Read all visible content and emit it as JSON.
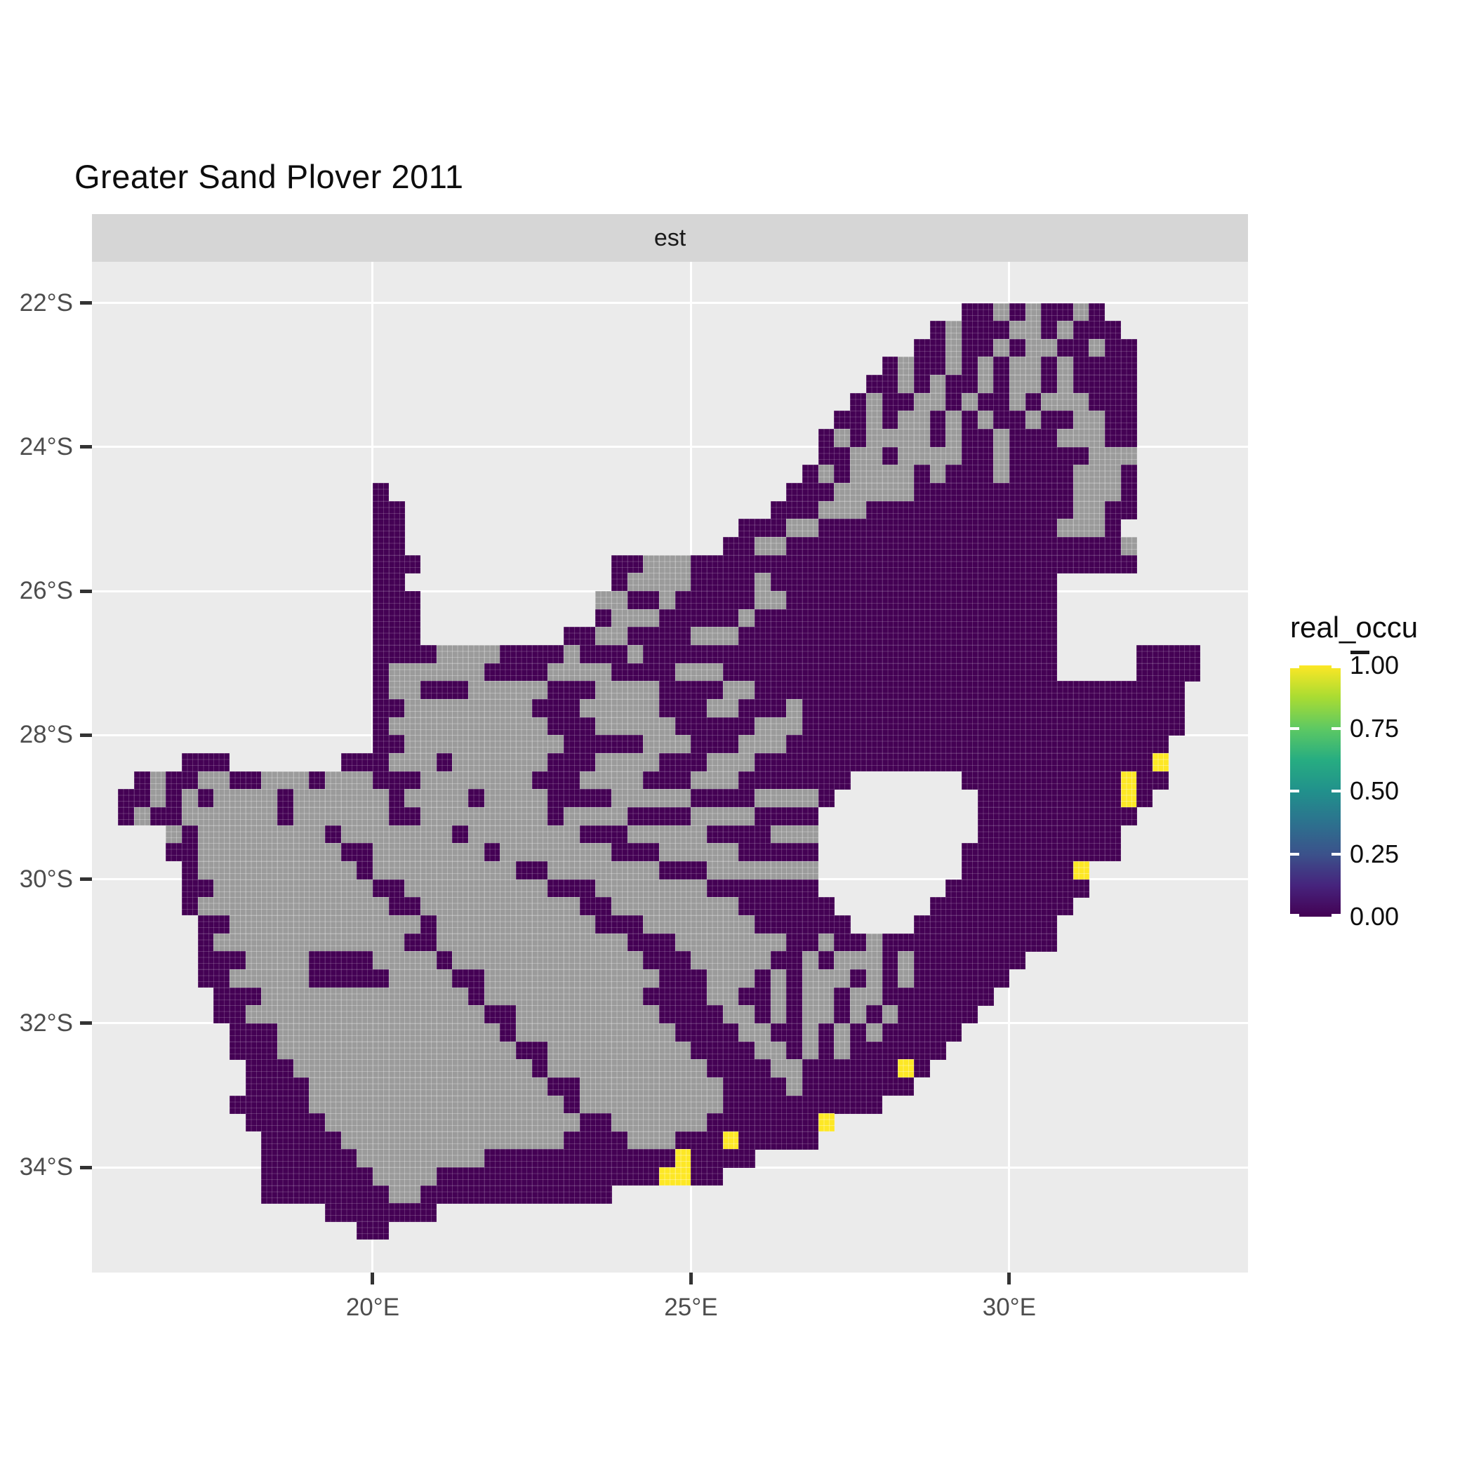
{
  "title": "Greater Sand Plover 2011",
  "facet": {
    "label": "est"
  },
  "axes": {
    "x": {
      "ticks": [
        {
          "label": "20°E",
          "value": 20
        },
        {
          "label": "25°E",
          "value": 25
        },
        {
          "label": "30°E",
          "value": 30
        }
      ]
    },
    "y": {
      "ticks": [
        {
          "label": "22°S",
          "value": 22
        },
        {
          "label": "24°S",
          "value": 24
        },
        {
          "label": "26°S",
          "value": 26
        },
        {
          "label": "28°S",
          "value": 28
        },
        {
          "label": "30°S",
          "value": 30
        },
        {
          "label": "32°S",
          "value": 32
        },
        {
          "label": "34°S",
          "value": 34
        }
      ]
    }
  },
  "legend": {
    "title": "real_occu",
    "entries": [
      {
        "label": "1.00",
        "value": 1.0
      },
      {
        "label": "0.75",
        "value": 0.75
      },
      {
        "label": "0.50",
        "value": 0.5
      },
      {
        "label": "0.25",
        "value": 0.25
      },
      {
        "label": "0.00",
        "value": 0.0
      }
    ],
    "gradient_bottom_to_top": [
      "#440154",
      "#46247d",
      "#3b528b",
      "#2c728e",
      "#21918c",
      "#27ad81",
      "#5ec962",
      "#aadc32",
      "#fde725"
    ]
  },
  "colors": {
    "panel_background": "#ebebeb",
    "strip_background": "#d6d6d6",
    "gridline": "#ffffff",
    "occupancy_zero": "#440154",
    "occupancy_one": "#fde725",
    "no_data_gray": "#9b9b9b",
    "axis_text": "#4d4d4d",
    "tick_mark": "#333333"
  },
  "chart_data": {
    "type": "heatmap",
    "title": "Greater Sand Plover 2011",
    "facet_label": "est",
    "description": "Raster map of South Africa showing estimated real occupancy (real_occu) per grid cell; dark purple = 0.00, yellow = 1.00 (viridis scale), gray = surveyed cells with no estimate; Lesotho and Eswatini are holes.",
    "x_domain_deg_E": [
      15.59,
      33.75
    ],
    "y_domain_deg_S": [
      21.43,
      35.46
    ],
    "x_tick_values": [
      20,
      25,
      30
    ],
    "y_tick_values": [
      22,
      24,
      26,
      28,
      30,
      32,
      34
    ],
    "legend_range": [
      0.0,
      1.0
    ],
    "grid": {
      "lon_min": 16.0,
      "lat_min": 22.0,
      "cell_deg": 0.25,
      "ncols": 68,
      "nrows": 52
    },
    "cell_colors": {
      "p": "#440154",
      "g": "#9b9b9b",
      "y": "#fde725"
    },
    "cell_values": {
      "p": 0.0,
      "g": "no-estimate",
      "y": 1.0
    },
    "cells": [
      [
        0,
        53,
        "ppgpgppgp"
      ],
      [
        1,
        51,
        "pgpppggpgppp"
      ],
      [
        2,
        50,
        "ppgppgpggppgpp"
      ],
      [
        3,
        48,
        "pgppgpgpggpgpppp"
      ],
      [
        4,
        47,
        "ppgpgppgpggpgpppp"
      ],
      [
        5,
        46,
        "pgppggpgppgpgggppp"
      ],
      [
        6,
        45,
        "ppgpggpgpgppgppggpp"
      ],
      [
        7,
        44,
        "pgpggggpgppgpppgggpp"
      ],
      [
        8,
        44,
        "ppggpggggppgpppppggg"
      ],
      [
        9,
        43,
        "pgpggggpgpppgppppgggp"
      ],
      [
        10,
        16,
        "p"
      ],
      [
        10,
        42,
        "pppgggggppppppppppgggp"
      ],
      [
        11,
        16,
        "pp"
      ],
      [
        11,
        41,
        "pppgggpppppppppppppggpp"
      ],
      [
        12,
        16,
        "pp"
      ],
      [
        12,
        39,
        "pppggpppppppppppppppgggp"
      ],
      [
        13,
        16,
        "pp"
      ],
      [
        13,
        38,
        "ppggpppppppppppppppppppppg"
      ],
      [
        14,
        16,
        "ppp"
      ],
      [
        14,
        31,
        "ppgggpppppppppppppppppppppppppppp"
      ],
      [
        15,
        16,
        "pp"
      ],
      [
        15,
        31,
        "pggggppppgpppppppppppppppppp"
      ],
      [
        16,
        16,
        "ppp"
      ],
      [
        16,
        30,
        "ggppgpppppggppppppppppppppppp"
      ],
      [
        17,
        16,
        "ppp"
      ],
      [
        17,
        30,
        "pgggpppppgppppppppppppppppppp"
      ],
      [
        18,
        16,
        "ppp"
      ],
      [
        18,
        28,
        "ppggppppgggpppppppppppppppppppp"
      ],
      [
        19,
        16,
        "ppppggggppppgpppgpppppppppppppppppppppppppp"
      ],
      [
        19,
        64,
        "pppp"
      ],
      [
        20,
        16,
        "pggggggppppggggppppgggppppppppppppppppppppp"
      ],
      [
        20,
        64,
        "pppp"
      ],
      [
        21,
        16,
        "pggpppgggggpppggggppppggppppppppppppppppppppppppppp"
      ],
      [
        22,
        16,
        "ppggggggggpppgggggpppggpppgpppppppppppppppppppppppp"
      ],
      [
        23,
        16,
        "pggggggggggpppgggggpppppgggpppppppppppppppppppppppp"
      ],
      [
        24,
        16,
        "ppggggggggggpppppgggpppgggpppppppppppppppppppppppp"
      ],
      [
        25,
        4,
        "ppp"
      ],
      [
        25,
        14,
        "pppgggpggggggpppggggpppgggpppppppppppppppppppppppppy"
      ],
      [
        26,
        1,
        "pgppggppgggpgggpppgggggggpppggggpppgggppppppp"
      ],
      [
        26,
        53,
        "ppppppppppypp"
      ],
      [
        27,
        0,
        "ppgpgpggggpggggggpggggpggggppppgggggppppggggp"
      ],
      [
        27,
        54,
        "pppppppppyp"
      ],
      [
        28,
        0,
        "pgppggggggpggggggppggggggggpggggppppggggpppp"
      ],
      [
        28,
        54,
        "pppppppppp"
      ],
      [
        29,
        3,
        "gpggggggggpgggggggpgggggggpppgggggppppggg"
      ],
      [
        29,
        54,
        "ppppppppp"
      ],
      [
        30,
        3,
        "ppgggggggggppgggggggpgggggggpppgggggppppp"
      ],
      [
        30,
        53,
        "pppppppppp"
      ],
      [
        31,
        4,
        "pggggggggggpgggggggggppgggggggpppggggggg"
      ],
      [
        31,
        53,
        "pppppppy"
      ],
      [
        32,
        4,
        "ppggggggggggppgggggggggpppgggggggppppppp"
      ],
      [
        32,
        52,
        "ppppppppp"
      ],
      [
        33,
        4,
        "pggggggggggggppggggggggggppggggggggpppppp"
      ],
      [
        33,
        51,
        "ppppppppp"
      ],
      [
        34,
        5,
        "ppggggggggggggpggggggggggpppgggggggpppppp"
      ],
      [
        34,
        50,
        "ppppppppp"
      ],
      [
        35,
        5,
        "pggggggggggggppggggggggggggpppgggggggppgppgppppppppppp"
      ],
      [
        36,
        5,
        "pppggggppppggggpggggggggggggpppgggggppgpgggpgppppppp"
      ],
      [
        37,
        5,
        "ppgggggpppppggggppgggggggggggpppgggpgpgggpgpgpppppp"
      ],
      [
        38,
        6,
        "pppgggggggggggggpggggggggggppppggppgpggpggppppppp"
      ],
      [
        39,
        6,
        "ppgggggggggggggggppgggggggggppppggpgpggpgpgppppp"
      ],
      [
        40,
        7,
        "pppggggggggggggggpggggggggggppppggppgpgpgppppp"
      ],
      [
        41,
        7,
        "pppgggggggggggggggppgggggggggppppggpgpgpppppp"
      ],
      [
        42,
        8,
        "pppgggggggggggggggpggggggggggppppggppppppyp"
      ],
      [
        43,
        8,
        "ppppgggggggggggggggppgggggggggppppgppppppp"
      ],
      [
        44,
        7,
        "pppppggggggggggggggggpgggggggggpppppppppp"
      ],
      [
        45,
        8,
        "pppppggggggggggggggggppggggggpppppppy"
      ],
      [
        46,
        9,
        "pppppggggggggggggggppppgggpppyppppp"
      ],
      [
        47,
        9,
        "ppppppggggggggppppppppppppypppp"
      ],
      [
        48,
        9,
        "pppppppggggppppppppppppppyypp"
      ],
      [
        49,
        9,
        "ppppppppggpppppppppppp"
      ],
      [
        50,
        13,
        "ppppppp"
      ],
      [
        51,
        15,
        "pp"
      ]
    ]
  }
}
